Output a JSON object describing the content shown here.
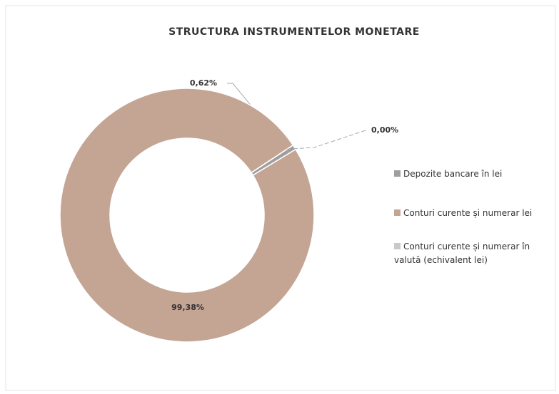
{
  "chart_data": {
    "type": "donut",
    "title": "STRUCTURA INSTRUMENTELOR MONETARE",
    "categories": [
      "Depozite bancare în lei",
      "Conturi curente și numerar lei",
      "Conturi curente și numerar în valută (echivalent lei)"
    ],
    "values": [
      0.62,
      99.38,
      0.0
    ],
    "value_labels": [
      "0,62%",
      "99,38%",
      "0,00%"
    ],
    "colors": [
      "#9e9e9e",
      "#c4a594",
      "#c9c9c9"
    ],
    "legend": "right"
  }
}
